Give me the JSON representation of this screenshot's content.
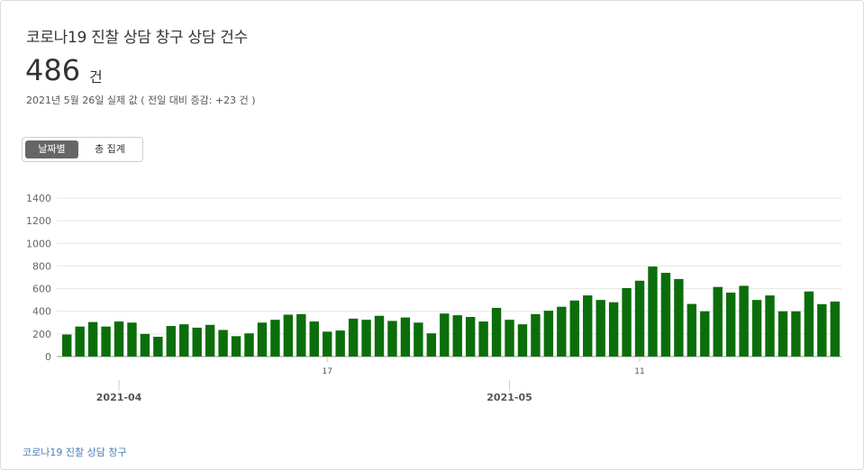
{
  "header": {
    "title": "코로나19 진찰 상담 창구 상담 건수",
    "value": "486",
    "unit": "건",
    "subtitle": "2021년 5월 26일 실제 값 ( 전일 대비 증감: +23 건 )"
  },
  "toggle": {
    "by_date": "날짜별",
    "total": "총 집계"
  },
  "footer": {
    "link_text": "코로나19 진찰 상담 창구"
  },
  "colors": {
    "bar": "#0b6e0b",
    "grid": "#e6e6e6",
    "axis": "#999999"
  },
  "chart_data": {
    "type": "bar",
    "title": "",
    "xlabel": "",
    "ylabel": "",
    "ylim": [
      0,
      1400
    ],
    "y_ticks": [
      0,
      200,
      400,
      600,
      800,
      1000,
      1200,
      1400
    ],
    "grid": true,
    "x_tick_labels": [
      {
        "index": 4,
        "label": "2021-04",
        "level": "month"
      },
      {
        "index": 20,
        "label": "17",
        "level": "day"
      },
      {
        "index": 34,
        "label": "2021-05",
        "level": "month"
      },
      {
        "index": 44,
        "label": "11",
        "level": "day"
      }
    ],
    "values": [
      195,
      265,
      305,
      265,
      310,
      300,
      200,
      175,
      270,
      285,
      255,
      280,
      235,
      180,
      205,
      300,
      325,
      370,
      375,
      310,
      220,
      230,
      335,
      325,
      360,
      315,
      345,
      300,
      205,
      380,
      365,
      350,
      310,
      430,
      325,
      285,
      375,
      405,
      440,
      495,
      540,
      500,
      480,
      605,
      670,
      795,
      740,
      685,
      465,
      400,
      615,
      565,
      625,
      500,
      540,
      400,
      400,
      575,
      463,
      486
    ]
  }
}
